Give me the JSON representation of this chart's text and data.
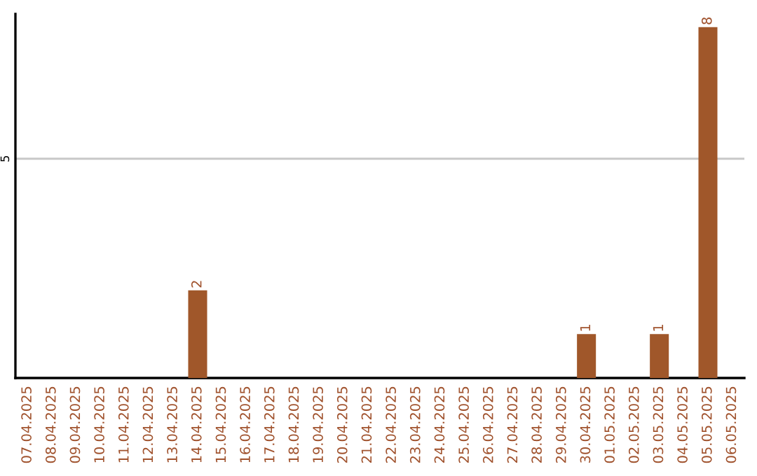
{
  "chart_data": {
    "type": "bar",
    "categories": [
      "07.04.2025",
      "08.04.2025",
      "09.04.2025",
      "10.04.2025",
      "11.04.2025",
      "12.04.2025",
      "13.04.2025",
      "14.04.2025",
      "15.04.2025",
      "16.04.2025",
      "17.04.2025",
      "18.04.2025",
      "19.04.2025",
      "20.04.2025",
      "21.04.2025",
      "22.04.2025",
      "23.04.2025",
      "24.04.2025",
      "25.04.2025",
      "26.04.2025",
      "27.04.2025",
      "28.04.2025",
      "29.04.2025",
      "30.04.2025",
      "01.05.2025",
      "02.05.2025",
      "03.05.2025",
      "04.05.2025",
      "05.05.2025",
      "06.05.2025"
    ],
    "values": [
      0,
      0,
      0,
      0,
      0,
      0,
      0,
      2,
      0,
      0,
      0,
      0,
      0,
      0,
      0,
      0,
      0,
      0,
      0,
      0,
      0,
      0,
      0,
      1,
      0,
      0,
      1,
      0,
      8,
      0
    ],
    "value_labels": [
      null,
      null,
      null,
      null,
      null,
      null,
      null,
      "2",
      null,
      null,
      null,
      null,
      null,
      null,
      null,
      null,
      null,
      null,
      null,
      null,
      null,
      null,
      null,
      "1",
      null,
      null,
      "1",
      null,
      "8",
      null
    ],
    "color": "#a0572a",
    "ylim": [
      0,
      8.3
    ],
    "yticks": [
      5
    ],
    "grid": "y",
    "legend": false
  }
}
